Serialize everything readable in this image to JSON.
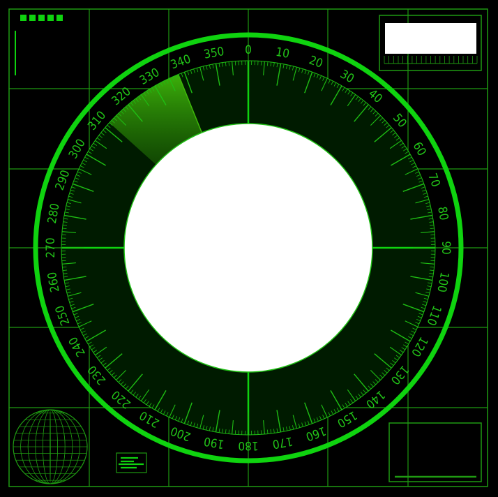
{
  "colors": {
    "background": "#000000",
    "grid": "#1f9a12",
    "ring": "#0fd30f",
    "scale": "#1fbf14",
    "label": "#22c418",
    "dial": "#001b00",
    "display": "#ffffff",
    "sweep": "#3fb80a"
  },
  "compass": {
    "labels": [
      "0",
      "10",
      "20",
      "30",
      "40",
      "50",
      "60",
      "70",
      "80",
      "90",
      "100",
      "110",
      "120",
      "130",
      "140",
      "150",
      "160",
      "170",
      "180",
      "190",
      "200",
      "210",
      "220",
      "230",
      "240",
      "250",
      "260",
      "270",
      "280",
      "290",
      "300",
      "310",
      "320",
      "330",
      "340",
      "350"
    ]
  },
  "sweep": {
    "from_deg": 312,
    "to_deg": 338
  },
  "indicators": {
    "status_blocks": 5
  },
  "icons": {
    "globe": "wireframe-globe-icon",
    "menu": "list-icon"
  }
}
